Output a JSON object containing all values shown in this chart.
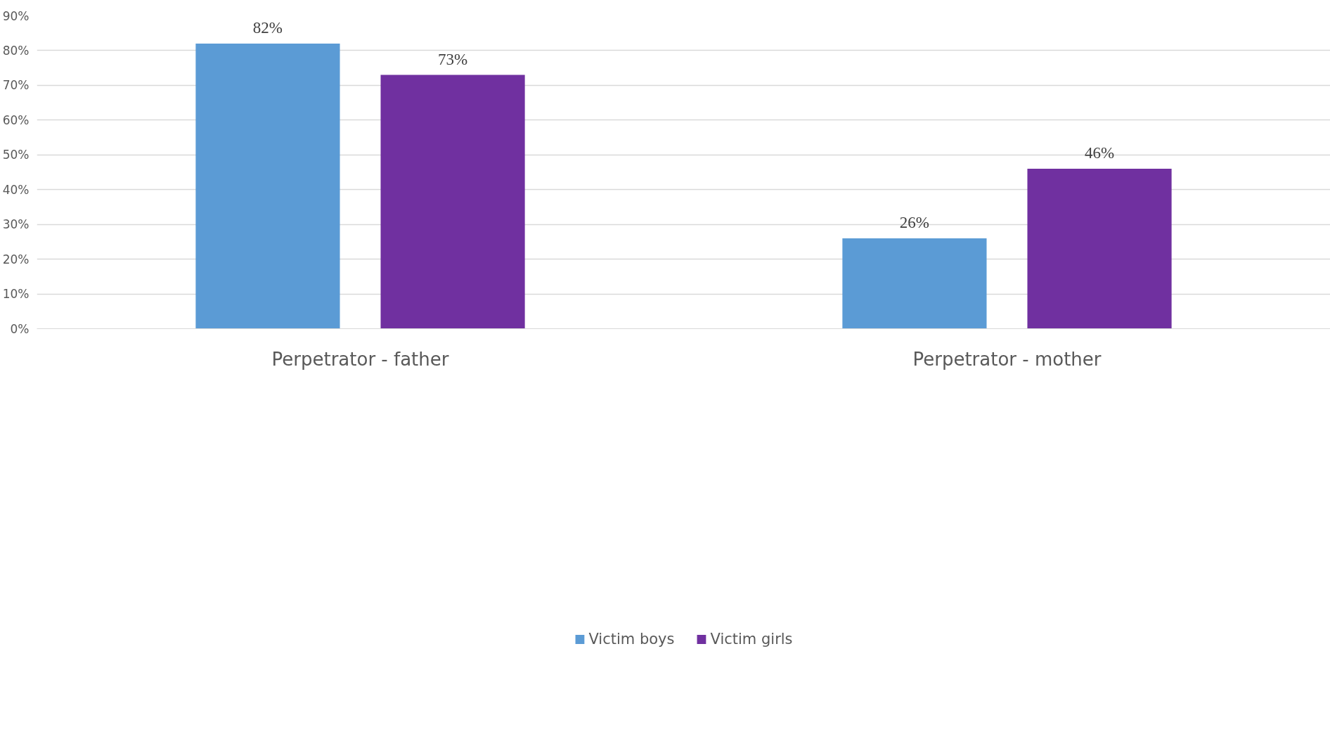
{
  "chart_data": {
    "type": "bar",
    "categories": [
      "Perpetrator - father",
      "Perpetrator - mother"
    ],
    "series": [
      {
        "name": "Victim boys",
        "color": "#5b9bd5",
        "values": [
          82,
          26
        ],
        "value_labels": [
          "82%",
          "26%"
        ]
      },
      {
        "name": "Victim girls",
        "color": "#7030a0",
        "values": [
          73,
          46
        ],
        "value_labels": [
          "73%",
          "46%"
        ]
      }
    ],
    "ylim": [
      0,
      90
    ],
    "yticks": [
      {
        "value": 0,
        "label": "0%"
      },
      {
        "value": 10,
        "label": "10%"
      },
      {
        "value": 20,
        "label": "20%"
      },
      {
        "value": 30,
        "label": "30%"
      },
      {
        "value": 40,
        "label": "40%"
      },
      {
        "value": 50,
        "label": "50%"
      },
      {
        "value": 60,
        "label": "60%"
      },
      {
        "value": 70,
        "label": "70%"
      },
      {
        "value": 80,
        "label": "80%"
      },
      {
        "value": 90,
        "label": "90%"
      }
    ],
    "grid": "y",
    "legend": "bottom"
  }
}
